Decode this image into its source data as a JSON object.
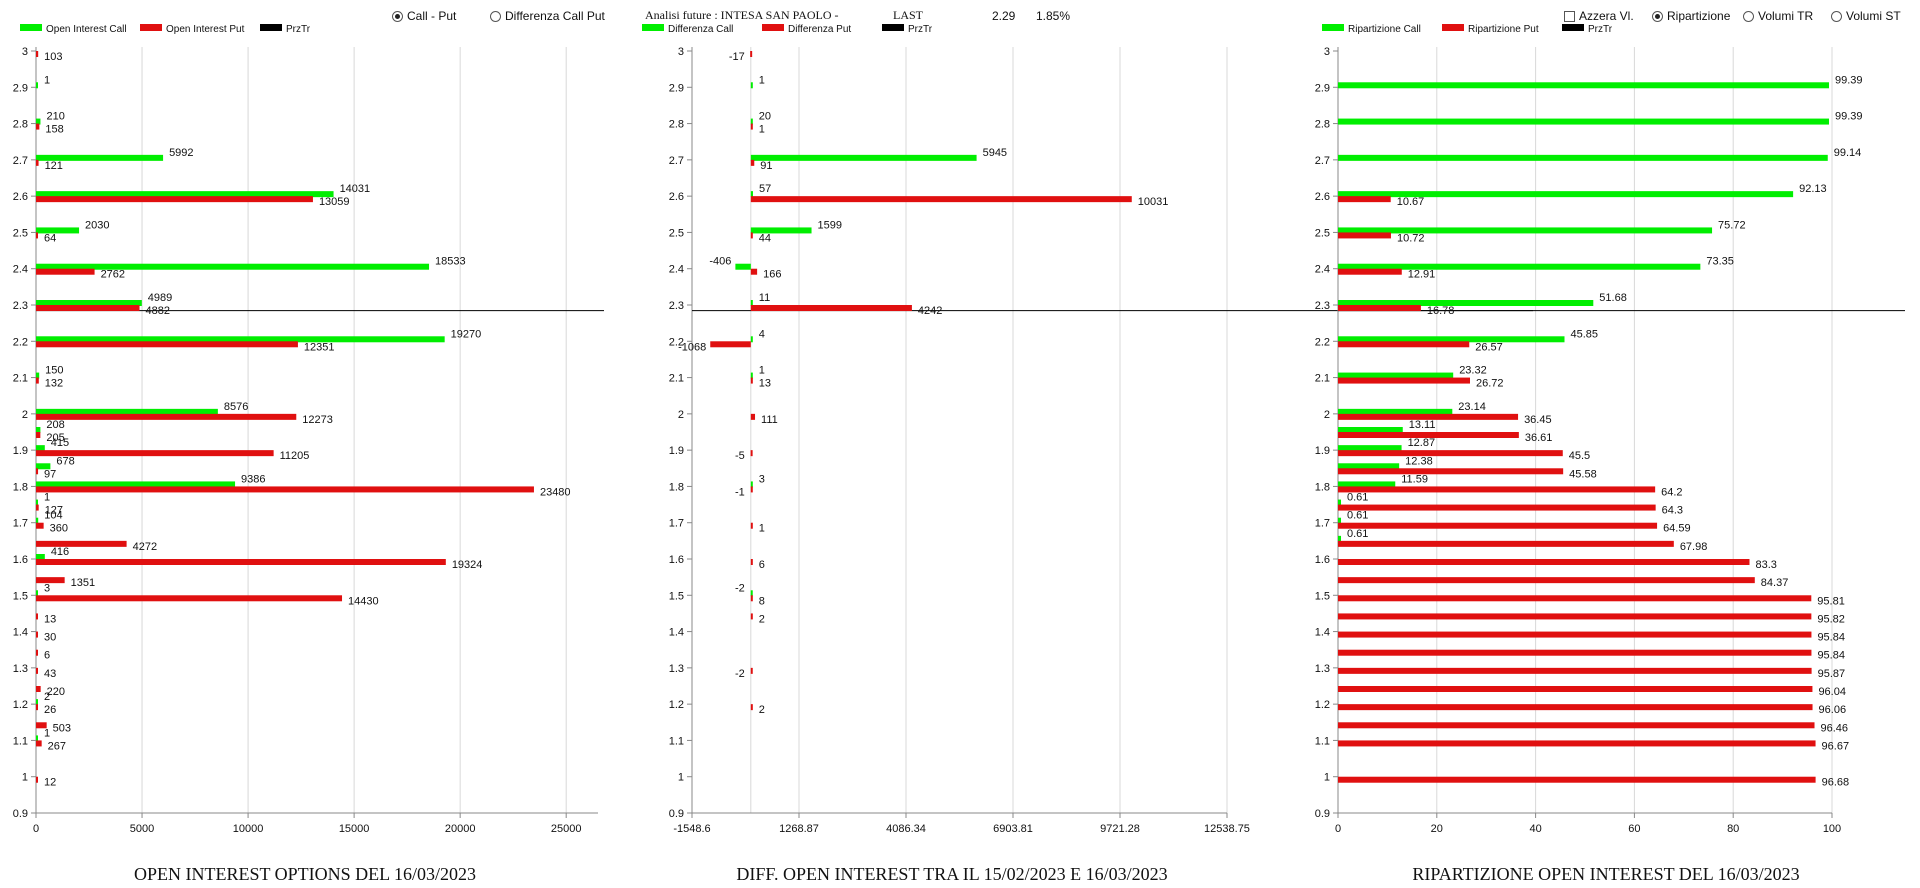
{
  "header": {
    "controls_left": [
      {
        "label": "Call - Put",
        "selected": true
      },
      {
        "label": "Differenza Call Put",
        "selected": false
      }
    ],
    "title": "Analisi future : INTESA SAN PAOLO -",
    "last_label": "LAST",
    "last_value": "2.29",
    "last_change": "1.85%",
    "controls_right": [
      {
        "label": "Azzera Vl.",
        "kind": "check",
        "selected": false
      },
      {
        "label": "Ripartizione",
        "kind": "radio",
        "selected": true
      },
      {
        "label": "Volumi TR",
        "kind": "radio",
        "selected": false
      },
      {
        "label": "Volumi ST",
        "kind": "radio",
        "selected": false
      }
    ]
  },
  "colors": {
    "call": "#00ee00",
    "put": "#e01010",
    "pz": "#000000",
    "grid": "#d8d8d8",
    "axis": "#888888"
  },
  "chart_data": [
    {
      "type": "bar",
      "orientation": "horizontal",
      "title": "OPEN INTEREST OPTIONS DEL 16/03/2023",
      "legend": [
        "Open Interest Call",
        "Open Interest Put",
        "PrzTr"
      ],
      "xlim": [
        0,
        26500
      ],
      "xticks": [
        0,
        5000,
        10000,
        15000,
        20000,
        25000
      ],
      "xtick_labels": [
        "0",
        "5000",
        "10000",
        "15000",
        "20000",
        "25000"
      ],
      "reference_price": 2.29,
      "series": [
        {
          "name": "Open Interest Call",
          "points": [
            [
              2.9,
              1
            ],
            [
              2.8,
              210
            ],
            [
              2.7,
              5992
            ],
            [
              2.6,
              14031
            ],
            [
              2.5,
              2030
            ],
            [
              2.4,
              18533
            ],
            [
              2.3,
              4989
            ],
            [
              2.2,
              19270
            ],
            [
              2.1,
              150
            ],
            [
              2.0,
              8576
            ],
            [
              1.95,
              208
            ],
            [
              1.9,
              415
            ],
            [
              1.85,
              678
            ],
            [
              1.8,
              9386
            ],
            [
              1.75,
              1
            ],
            [
              1.7,
              104
            ],
            [
              1.6,
              416
            ],
            [
              1.5,
              3
            ],
            [
              1.2,
              2
            ],
            [
              1.1,
              1
            ]
          ]
        },
        {
          "name": "Open Interest Put",
          "points": [
            [
              3.0,
              103
            ],
            [
              2.8,
              158
            ],
            [
              2.7,
              121
            ],
            [
              2.6,
              13059
            ],
            [
              2.5,
              64
            ],
            [
              2.4,
              2762
            ],
            [
              2.3,
              4882
            ],
            [
              2.2,
              12351
            ],
            [
              2.1,
              132
            ],
            [
              2.0,
              12273
            ],
            [
              1.95,
              205
            ],
            [
              1.9,
              11205
            ],
            [
              1.85,
              97
            ],
            [
              1.8,
              23480
            ],
            [
              1.75,
              127
            ],
            [
              1.7,
              360
            ],
            [
              1.65,
              4272
            ],
            [
              1.6,
              19324
            ],
            [
              1.55,
              1351
            ],
            [
              1.5,
              14430
            ],
            [
              1.45,
              13
            ],
            [
              1.4,
              30
            ],
            [
              1.35,
              6
            ],
            [
              1.3,
              43
            ],
            [
              1.25,
              220
            ],
            [
              1.2,
              26
            ],
            [
              1.15,
              503
            ],
            [
              1.1,
              267
            ],
            [
              1.0,
              12
            ]
          ]
        }
      ]
    },
    {
      "type": "bar",
      "orientation": "horizontal",
      "title": "DIFF. OPEN INTEREST TRA IL 15/02/2023 E 16/03/2023",
      "legend": [
        "Differenza Call",
        "Differenza Put",
        "PrzTr"
      ],
      "xlim": [
        -1548.6,
        12538.75
      ],
      "xticks": [
        -1548.6,
        1268.87,
        4086.34,
        6903.81,
        9721.28,
        12538.75
      ],
      "xtick_labels": [
        "-1548.6",
        "1268.87",
        "4086.34",
        "6903.81",
        "9721.28",
        "12538.75"
      ],
      "reference_price": 2.29,
      "series": [
        {
          "name": "Differenza Call",
          "points": [
            [
              2.9,
              1
            ],
            [
              2.8,
              20
            ],
            [
              2.7,
              5945
            ],
            [
              2.6,
              57
            ],
            [
              2.5,
              1599
            ],
            [
              2.4,
              -406
            ],
            [
              2.3,
              11
            ],
            [
              2.2,
              4
            ],
            [
              2.1,
              1
            ],
            [
              1.8,
              3
            ],
            [
              1.5,
              -2
            ]
          ]
        },
        {
          "name": "Differenza Put",
          "points": [
            [
              3.0,
              -17
            ],
            [
              2.8,
              1
            ],
            [
              2.7,
              91
            ],
            [
              2.6,
              10031
            ],
            [
              2.5,
              44
            ],
            [
              2.4,
              166
            ],
            [
              2.3,
              4242
            ],
            [
              2.2,
              -1068
            ],
            [
              2.1,
              13
            ],
            [
              2.0,
              111
            ],
            [
              1.9,
              -5
            ],
            [
              1.8,
              -1
            ],
            [
              1.7,
              1
            ],
            [
              1.6,
              6
            ],
            [
              1.5,
              8
            ],
            [
              1.45,
              2
            ],
            [
              1.3,
              -2
            ],
            [
              1.2,
              2
            ]
          ]
        }
      ]
    },
    {
      "type": "bar",
      "orientation": "horizontal",
      "title": "RIPARTIZIONE OPEN INTEREST DEL 16/03/2023",
      "legend": [
        "Ripartizione Call",
        "Ripartizione Put",
        "PrzTr"
      ],
      "xlim": [
        0,
        100
      ],
      "xticks": [
        0,
        20,
        40,
        60,
        80,
        100
      ],
      "xtick_labels": [
        "0",
        "20",
        "40",
        "60",
        "80",
        "100"
      ],
      "reference_price": 2.29,
      "series": [
        {
          "name": "Ripartizione Call",
          "points": [
            [
              2.9,
              99.39
            ],
            [
              2.8,
              99.39
            ],
            [
              2.7,
              99.14
            ],
            [
              2.6,
              92.13
            ],
            [
              2.5,
              75.72
            ],
            [
              2.4,
              73.35
            ],
            [
              2.3,
              51.68
            ],
            [
              2.2,
              45.85
            ],
            [
              2.1,
              23.32
            ],
            [
              2.0,
              23.14
            ],
            [
              1.95,
              13.11
            ],
            [
              1.9,
              12.87
            ],
            [
              1.85,
              12.38
            ],
            [
              1.8,
              11.59
            ],
            [
              1.75,
              0.61
            ],
            [
              1.7,
              0.61
            ],
            [
              1.65,
              0.61
            ]
          ]
        },
        {
          "name": "Ripartizione Put",
          "points": [
            [
              2.6,
              10.67
            ],
            [
              2.5,
              10.72
            ],
            [
              2.4,
              12.91
            ],
            [
              2.3,
              16.78
            ],
            [
              2.2,
              26.57
            ],
            [
              2.1,
              26.72
            ],
            [
              2.0,
              36.45
            ],
            [
              1.95,
              36.61
            ],
            [
              1.9,
              45.5
            ],
            [
              1.85,
              45.58
            ],
            [
              1.8,
              64.2
            ],
            [
              1.75,
              64.3
            ],
            [
              1.7,
              64.59
            ],
            [
              1.65,
              67.98
            ],
            [
              1.6,
              83.3
            ],
            [
              1.55,
              84.37
            ],
            [
              1.5,
              95.81
            ],
            [
              1.45,
              95.82
            ],
            [
              1.4,
              95.84
            ],
            [
              1.35,
              95.84
            ],
            [
              1.3,
              95.87
            ],
            [
              1.25,
              96.04
            ],
            [
              1.2,
              96.06
            ],
            [
              1.15,
              96.46
            ],
            [
              1.1,
              96.67
            ],
            [
              1.0,
              96.68
            ]
          ]
        }
      ]
    }
  ],
  "y_axis": {
    "ticks": [
      3,
      2.9,
      2.8,
      2.7,
      2.6,
      2.5,
      2.4,
      2.3,
      2.2,
      2.1,
      2,
      1.9,
      1.8,
      1.7,
      1.6,
      1.5,
      1.4,
      1.3,
      1.2,
      1.1,
      1,
      0.9
    ]
  }
}
